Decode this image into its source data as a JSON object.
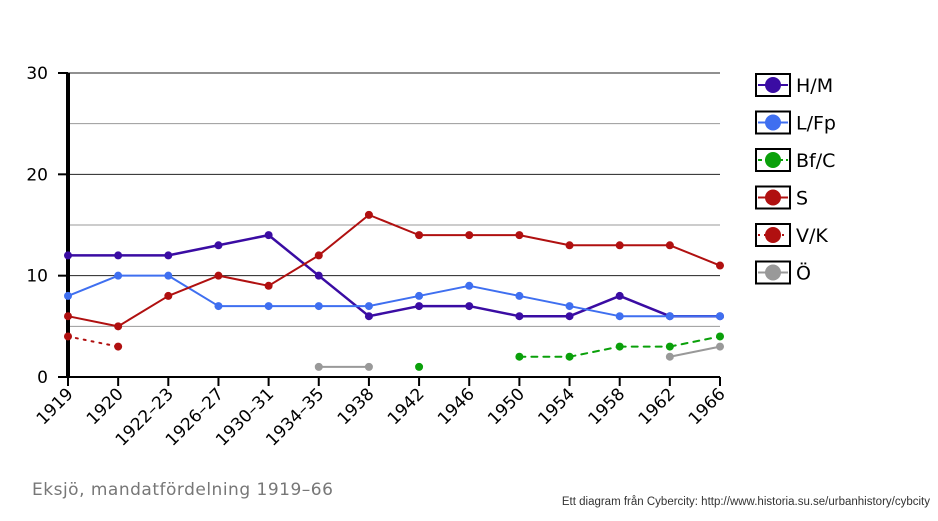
{
  "caption": "Eksjö, mandatfördelning 1919–66",
  "credit": "Ett diagram från Cybercity: http://www.historia.su.se/urbanhistory/cybcity",
  "chart_data": {
    "type": "line",
    "categories": [
      "1919",
      "1920",
      "1922–23",
      "1926–27",
      "1930–31",
      "1934–35",
      "1938",
      "1942",
      "1946",
      "1950",
      "1954",
      "1958",
      "1962",
      "1966"
    ],
    "ylim": [
      0,
      30
    ],
    "yticks": [
      0,
      10,
      20,
      30
    ],
    "grid": true,
    "legend_position": "right",
    "series": [
      {
        "name": "H/M",
        "color": "#3a0ca3",
        "style": "solid",
        "values": [
          12,
          12,
          12,
          13,
          14,
          10,
          6,
          7,
          7,
          6,
          6,
          8,
          6,
          6
        ]
      },
      {
        "name": "L/Fp",
        "color": "#3f6ff0",
        "style": "solid",
        "values": [
          8,
          10,
          10,
          7,
          7,
          7,
          7,
          8,
          9,
          8,
          7,
          6,
          6,
          6
        ]
      },
      {
        "name": "Bf/C",
        "color": "#0aa00a",
        "style": "dashed",
        "values": [
          null,
          null,
          null,
          null,
          null,
          null,
          null,
          1,
          null,
          2,
          2,
          3,
          3,
          4
        ]
      },
      {
        "name": "S",
        "color": "#b01010",
        "style": "solid",
        "values": [
          6,
          5,
          8,
          10,
          9,
          12,
          16,
          14,
          14,
          14,
          13,
          13,
          13,
          11
        ]
      },
      {
        "name": "V/K",
        "color": "#b01010",
        "style": "dotted",
        "values": [
          4,
          3,
          null,
          null,
          null,
          null,
          null,
          null,
          null,
          null,
          null,
          null,
          null,
          null
        ]
      },
      {
        "name": "Ö",
        "color": "#999999",
        "style": "solid",
        "values": [
          null,
          null,
          null,
          null,
          null,
          1,
          1,
          null,
          null,
          null,
          null,
          null,
          2,
          3
        ]
      }
    ]
  }
}
